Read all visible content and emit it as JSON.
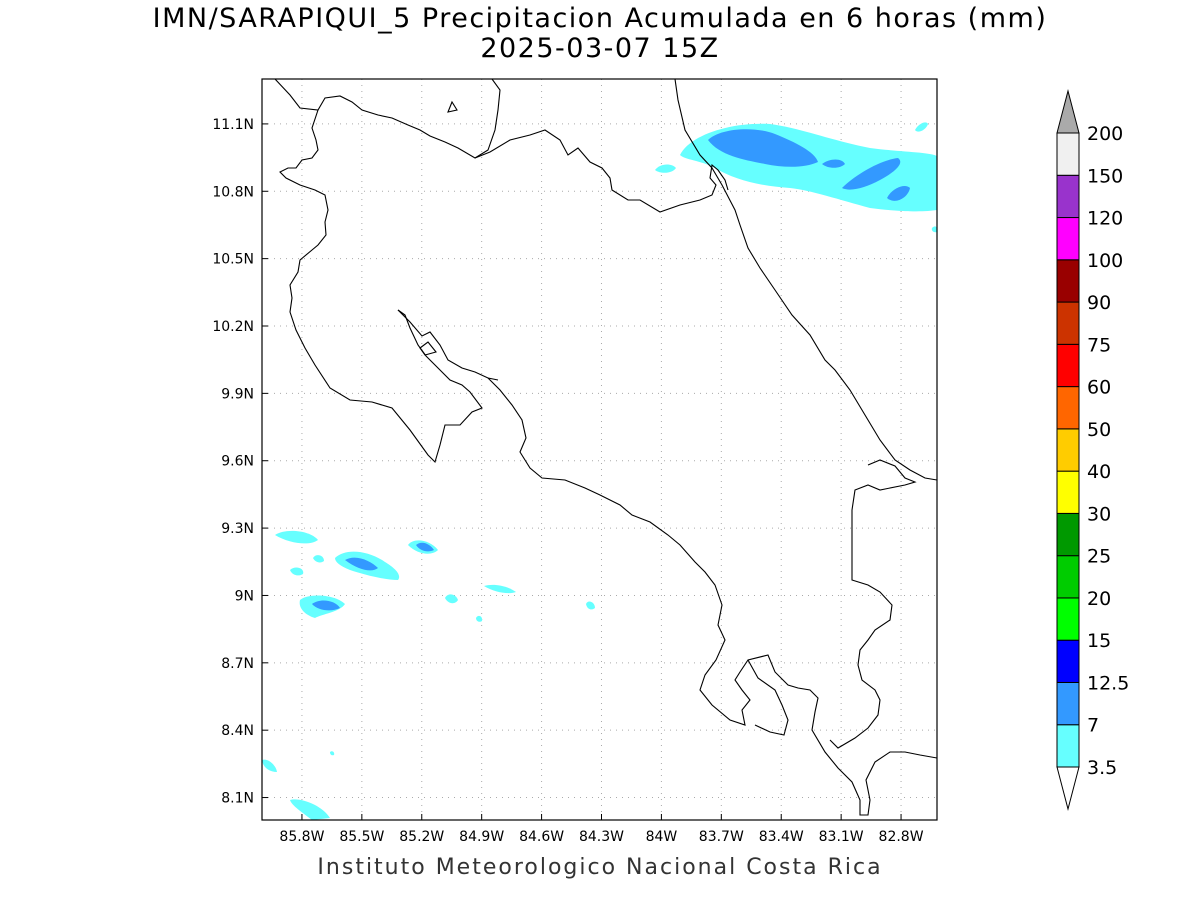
{
  "title": {
    "line1": "IMN/SARAPIQUI_5 Precipitacion Acumulada en 6 horas (mm)",
    "line2": "2025-03-07 15Z"
  },
  "footer": "Instituto Meteorologico Nacional Costa Rica",
  "map": {
    "lon_range": [
      -86.0,
      -82.62
    ],
    "lat_range": [
      8.0,
      11.3
    ],
    "lat_ticks": [
      {
        "value": 11.1,
        "label": "11.1N"
      },
      {
        "value": 10.8,
        "label": "10.8N"
      },
      {
        "value": 10.5,
        "label": "10.5N"
      },
      {
        "value": 10.2,
        "label": "10.2N"
      },
      {
        "value": 9.9,
        "label": "9.9N"
      },
      {
        "value": 9.6,
        "label": "9.6N"
      },
      {
        "value": 9.3,
        "label": "9.3N"
      },
      {
        "value": 9.0,
        "label": "9N"
      },
      {
        "value": 8.7,
        "label": "8.7N"
      },
      {
        "value": 8.4,
        "label": "8.4N"
      },
      {
        "value": 8.1,
        "label": "8.1N"
      }
    ],
    "lon_ticks": [
      {
        "value": -85.8,
        "label": "85.8W"
      },
      {
        "value": -85.5,
        "label": "85.5W"
      },
      {
        "value": -85.2,
        "label": "85.2W"
      },
      {
        "value": -84.9,
        "label": "84.9W"
      },
      {
        "value": -84.6,
        "label": "84.6W"
      },
      {
        "value": -84.3,
        "label": "84.3W"
      },
      {
        "value": -84.0,
        "label": "84W"
      },
      {
        "value": -83.7,
        "label": "83.7W"
      },
      {
        "value": -83.4,
        "label": "83.4W"
      },
      {
        "value": -83.1,
        "label": "83.1W"
      },
      {
        "value": -82.8,
        "label": "82.8W"
      }
    ],
    "grid": true,
    "border_color": "#000000"
  },
  "legend": {
    "levels": [
      {
        "label": "3.5",
        "color": "#66ffff"
      },
      {
        "label": "7",
        "color": "#3399ff"
      },
      {
        "label": "12.5",
        "color": "#0000ff"
      },
      {
        "label": "15",
        "color": "#00ff00"
      },
      {
        "label": "20",
        "color": "#00cc00"
      },
      {
        "label": "25",
        "color": "#009900"
      },
      {
        "label": "30",
        "color": "#ffff00"
      },
      {
        "label": "40",
        "color": "#ffcc00"
      },
      {
        "label": "50",
        "color": "#ff6600"
      },
      {
        "label": "60",
        "color": "#ff0000"
      },
      {
        "label": "75",
        "color": "#cc3300"
      },
      {
        "label": "90",
        "color": "#990000"
      },
      {
        "label": "100",
        "color": "#ff00ff"
      },
      {
        "label": "120",
        "color": "#9933cc"
      },
      {
        "label": "150",
        "color": "#f0f0f0"
      },
      {
        "label": "200",
        "color": "#aaaaaa"
      }
    ]
  }
}
